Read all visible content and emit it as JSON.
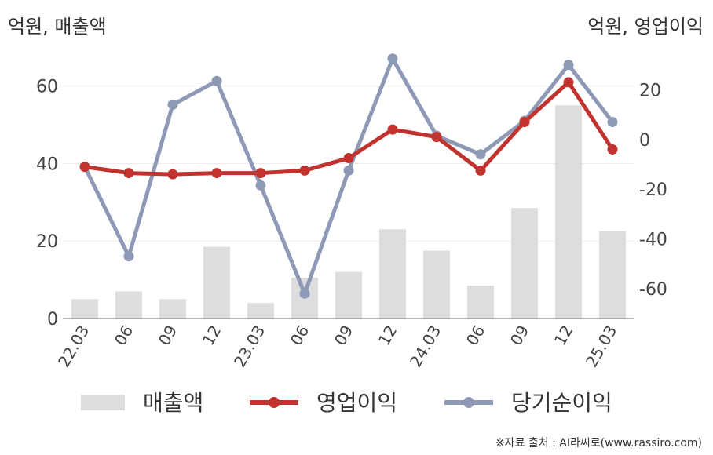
{
  "header": {
    "left_unit": "억원, 매출액",
    "right_unit": "억원, 영업이익"
  },
  "source": "※자료 출처 : AI라씨로(www.rassiro.com)",
  "chart_data": {
    "type": "bar+line",
    "categories": [
      "22.03",
      "06",
      "09",
      "12",
      "23.03",
      "06",
      "09",
      "12",
      "24.03",
      "06",
      "09",
      "12",
      "25.03"
    ],
    "left_axis": {
      "ylim": [
        0,
        68
      ],
      "ticks": [
        0,
        20,
        40,
        60
      ]
    },
    "right_axis": {
      "ylim": [
        -72,
        34
      ],
      "ticks": [
        -60,
        -40,
        -20,
        0,
        20
      ]
    },
    "series": [
      {
        "name": "매출액",
        "type": "bar",
        "axis": "left",
        "color": "#dddddd",
        "values": [
          5,
          7,
          5,
          18.5,
          4,
          10.5,
          12,
          23,
          17.5,
          8.5,
          28.5,
          55,
          22.5
        ]
      },
      {
        "name": "영업이익",
        "type": "line",
        "axis": "right",
        "color": "#c0332f",
        "values": [
          -11,
          -13.5,
          -14,
          -13.5,
          -13.5,
          -12.5,
          -7.5,
          4,
          1,
          -12.5,
          7,
          23,
          -4
        ]
      },
      {
        "name": "당기순이익",
        "type": "line",
        "axis": "right",
        "color": "#8e9ab5",
        "values": [
          -11,
          -47,
          14,
          23.5,
          -18.5,
          -62,
          -12.5,
          32.5,
          1.5,
          -6,
          7.5,
          30,
          7
        ]
      }
    ],
    "grid": true,
    "legend": "bottom"
  }
}
